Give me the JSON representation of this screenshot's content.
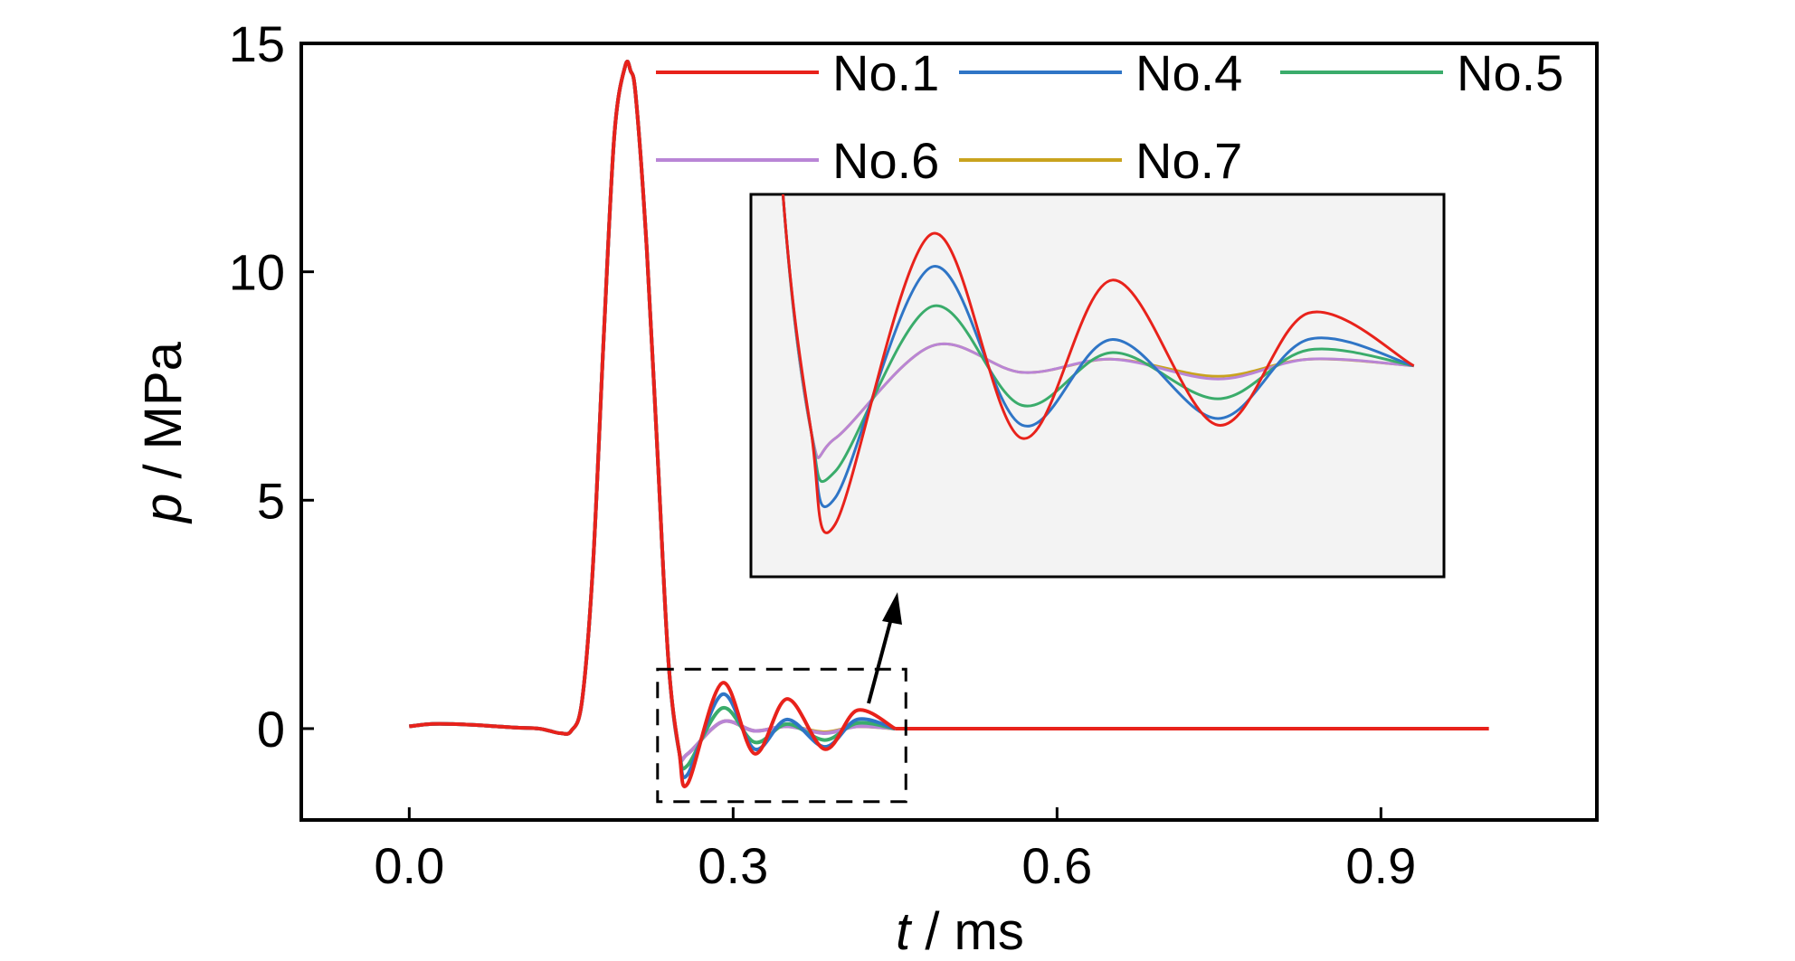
{
  "chart_data": {
    "type": "line",
    "xlabel": {
      "symbol": "t",
      "unit": " / ms"
    },
    "ylabel": {
      "symbol": "p",
      "unit": " / MPa"
    },
    "xlim": [
      -0.1,
      1.1
    ],
    "ylim": [
      -2.0,
      15.0
    ],
    "xticks": [
      0.0,
      0.3,
      0.6,
      0.9
    ],
    "xtick_labels": [
      "0.0",
      "0.3",
      "0.6",
      "0.9"
    ],
    "yticks": [
      0,
      5,
      10,
      15
    ],
    "ytick_labels": [
      "0",
      "5",
      "10",
      "15"
    ],
    "grid": false,
    "legend_position": "top-right",
    "base_curve": {
      "x": [
        0.0,
        0.02,
        0.04,
        0.06,
        0.08,
        0.1,
        0.12,
        0.13,
        0.14,
        0.15,
        0.16,
        0.17,
        0.18,
        0.19,
        0.2,
        0.205,
        0.21,
        0.22,
        0.23,
        0.24,
        0.25
      ],
      "y": [
        0.05,
        0.1,
        0.1,
        0.08,
        0.05,
        0.02,
        0.0,
        -0.05,
        -0.1,
        -0.05,
        0.6,
        3.5,
        8.5,
        13.0,
        14.5,
        14.4,
        13.8,
        10.5,
        6.0,
        1.5,
        -0.5
      ]
    },
    "tail": {
      "x": [
        0.45,
        1.0
      ],
      "y": [
        0.0,
        0.0
      ]
    },
    "series": [
      {
        "name": "No.1",
        "color": "#e8221b",
        "y_values": [
          -1.2,
          1.0,
          -0.55,
          0.65,
          -0.45,
          0.4,
          0.0
        ]
      },
      {
        "name": "No.4",
        "color": "#2f75c6",
        "y_values": [
          -1.0,
          0.75,
          -0.45,
          0.2,
          -0.4,
          0.2,
          0.0
        ]
      },
      {
        "name": "No.5",
        "color": "#3aac6b",
        "y_values": [
          -0.8,
          0.45,
          -0.3,
          0.1,
          -0.25,
          0.12,
          0.0
        ]
      },
      {
        "name": "No.6",
        "color": "#b985d6",
        "y_values": [
          -0.55,
          0.15,
          -0.05,
          0.05,
          -0.1,
          0.05,
          0.0
        ]
      },
      {
        "name": "No.7",
        "color": "#c9a31e",
        "y_values": [
          -0.55,
          0.15,
          -0.05,
          0.05,
          -0.08,
          0.05,
          0.0
        ]
      }
    ],
    "zoom_x_values": [
      0.258,
      0.29,
      0.32,
      0.35,
      0.385,
      0.415,
      0.45
    ],
    "zoom_region": {
      "xlim": [
        0.23,
        0.46
      ],
      "ylim": [
        -1.6,
        1.3
      ]
    }
  }
}
